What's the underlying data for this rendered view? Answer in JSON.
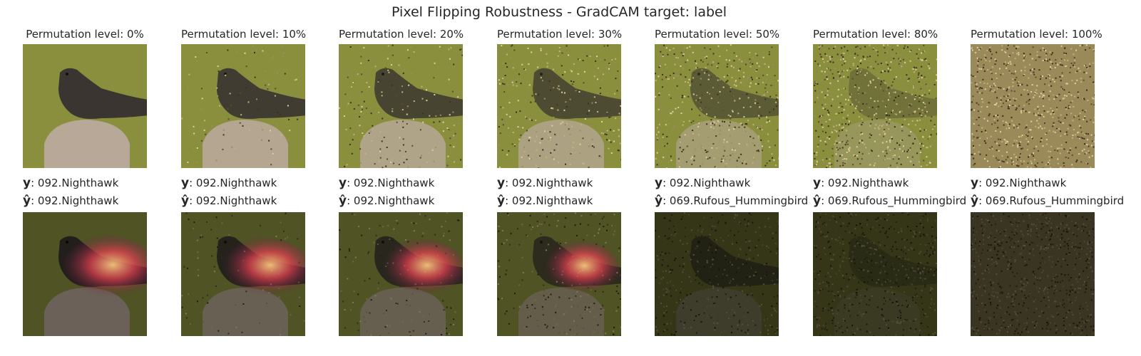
{
  "figure": {
    "title": "Pixel Flipping Robustness - GradCAM target: label",
    "y_symbol": "y",
    "yhat_symbol": "ŷ",
    "panels": [
      {
        "level_label": "Permutation level: 0%",
        "level": 0,
        "y_text": ": 092.Nighthawk",
        "yhat_text": ": 092.Nighthawk"
      },
      {
        "level_label": "Permutation level: 10%",
        "level": 10,
        "y_text": ": 092.Nighthawk",
        "yhat_text": ": 092.Nighthawk"
      },
      {
        "level_label": "Permutation level: 20%",
        "level": 20,
        "y_text": ": 092.Nighthawk",
        "yhat_text": ": 092.Nighthawk"
      },
      {
        "level_label": "Permutation level: 30%",
        "level": 30,
        "y_text": ": 092.Nighthawk",
        "yhat_text": ": 092.Nighthawk"
      },
      {
        "level_label": "Permutation level: 50%",
        "level": 50,
        "y_text": ": 092.Nighthawk",
        "yhat_text": ": 069.Rufous_Hummingbird"
      },
      {
        "level_label": "Permutation level: 80%",
        "level": 80,
        "y_text": ": 092.Nighthawk",
        "yhat_text": ": 069.Rufous_Hummingbird"
      },
      {
        "level_label": "Permutation level: 100%",
        "level": 100,
        "y_text": ": 092.Nighthawk",
        "yhat_text": ": 069.Rufous_Hummingbird"
      }
    ]
  },
  "colors": {
    "background_green": "#8a8f3e",
    "noise": "#9a8a5a",
    "bird": "#3a3530",
    "post": "#b8a898",
    "heat_hot": "#ffd080",
    "heat_mid": "#e04050",
    "heat_low": "#6a1f4a"
  }
}
